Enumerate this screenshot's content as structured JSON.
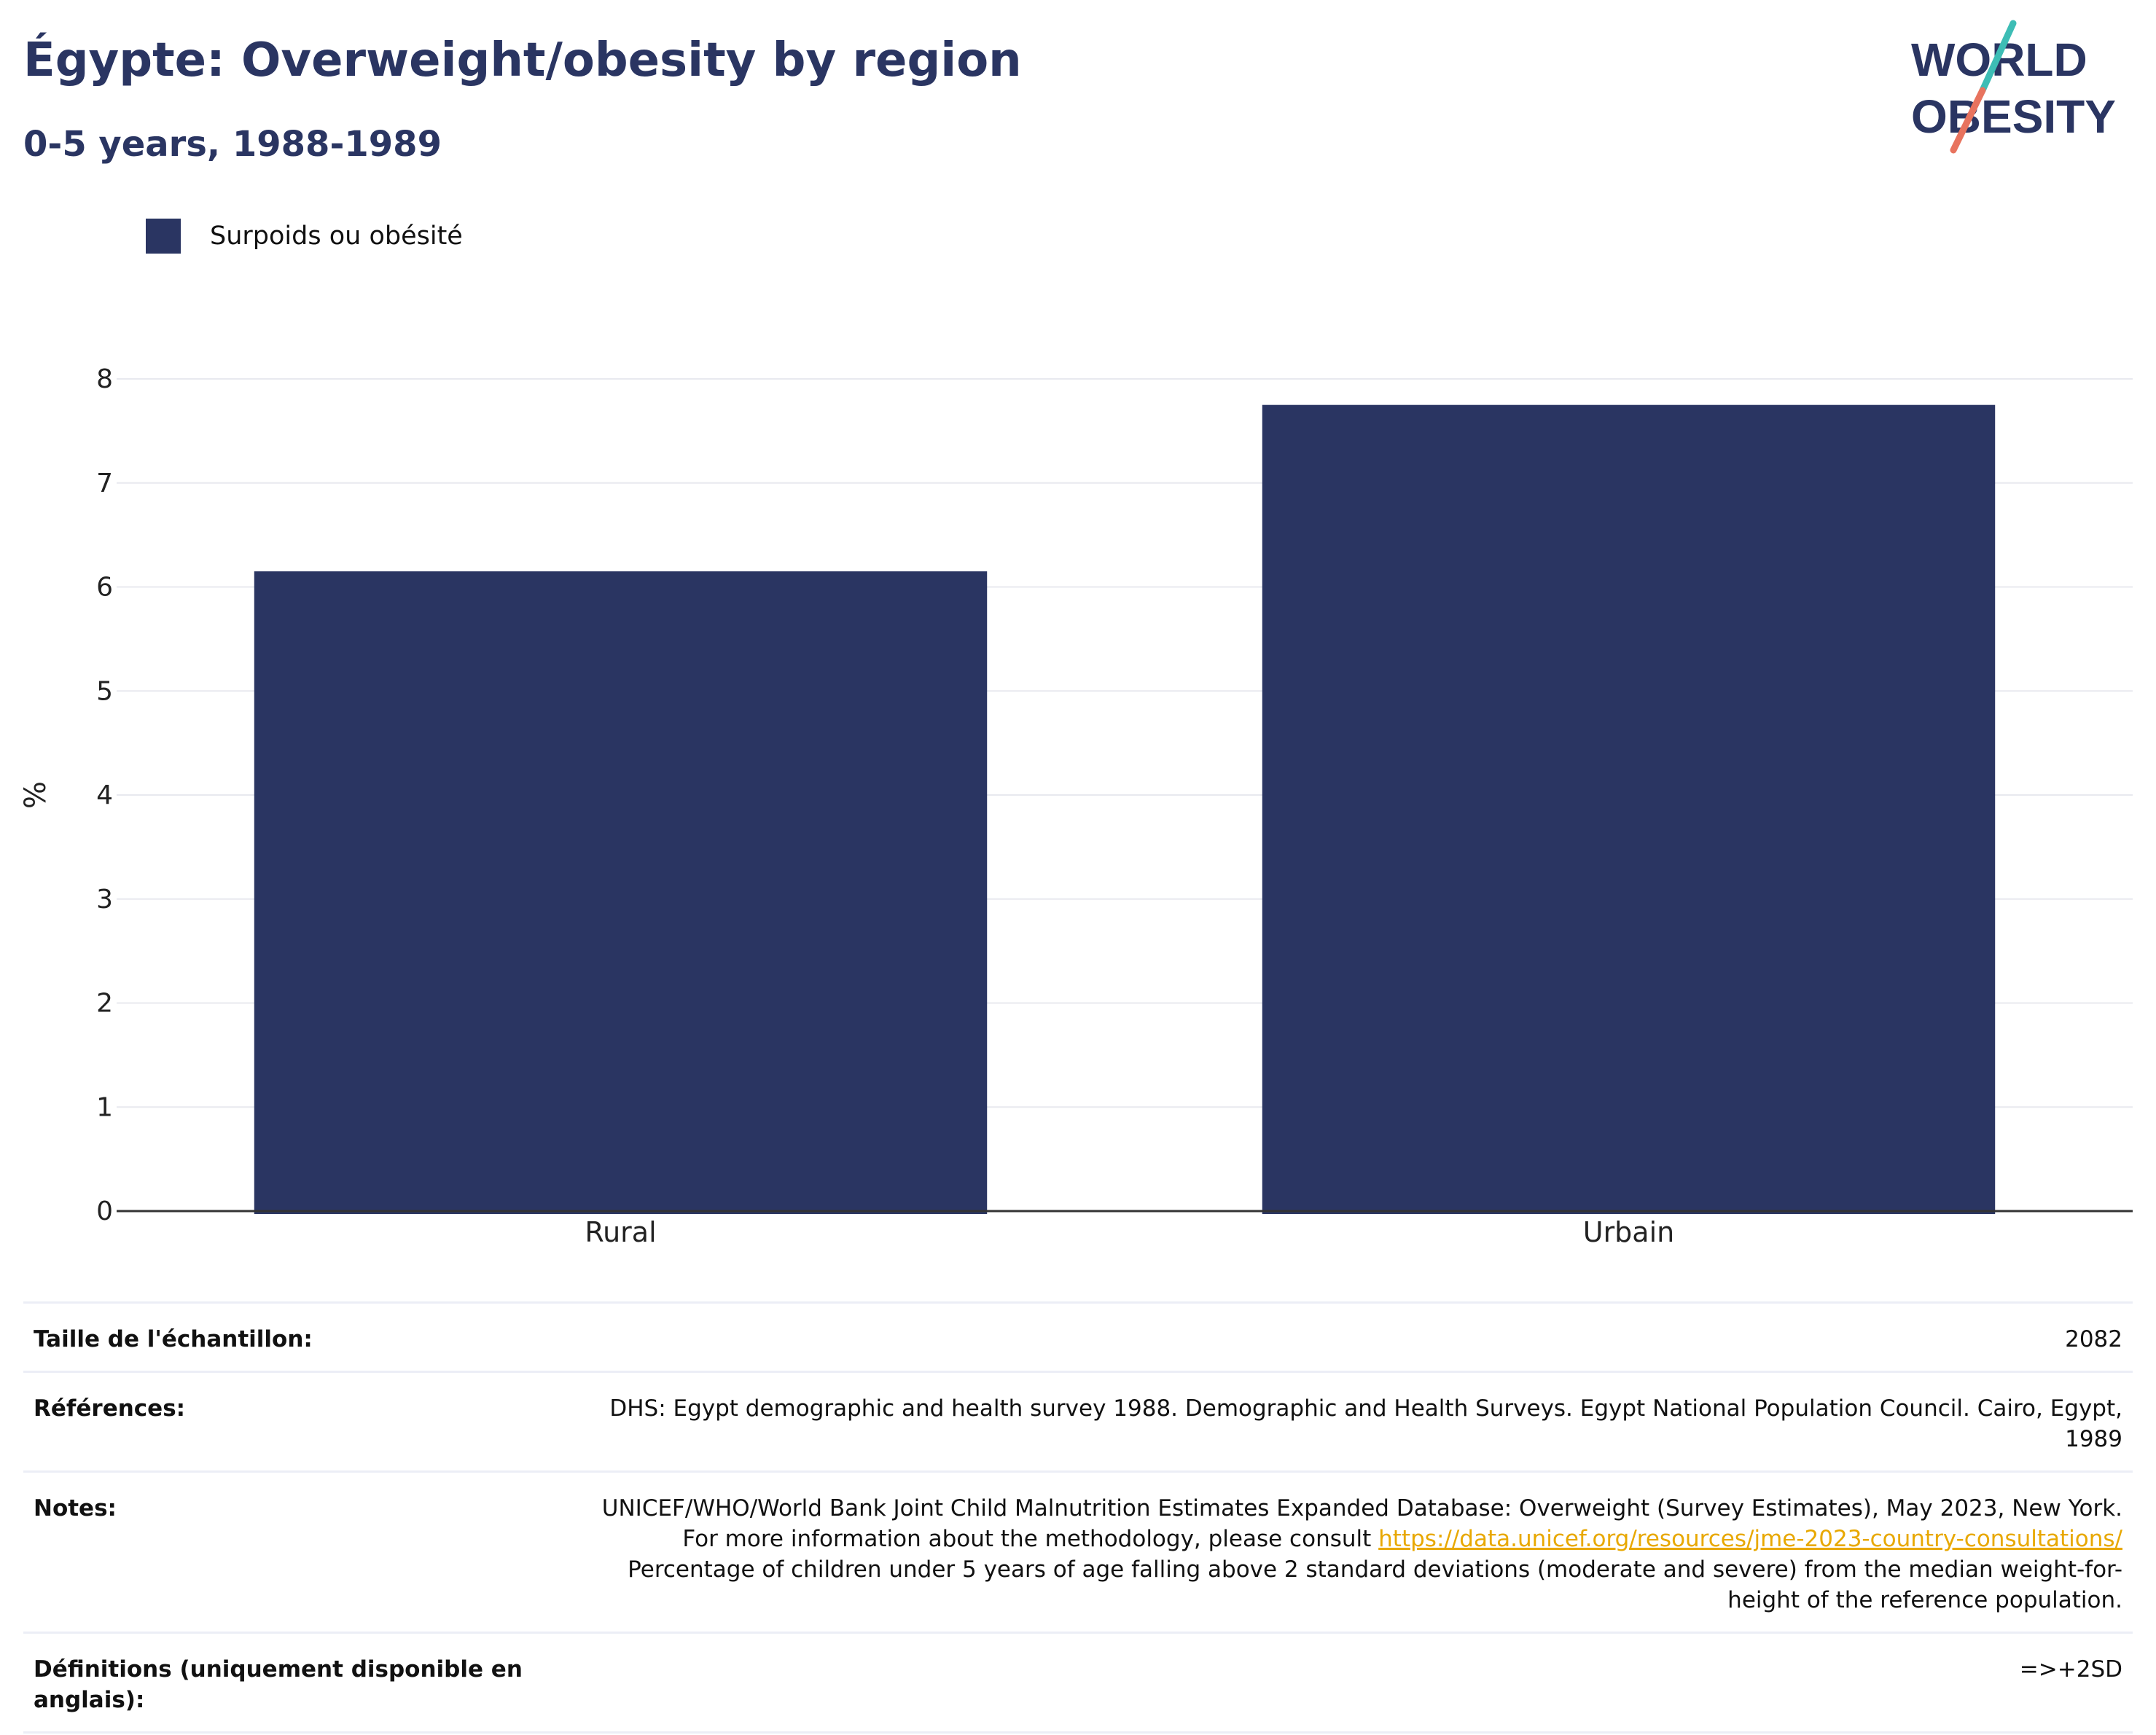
{
  "header": {
    "title": "Égypte: Overweight/obesity by region",
    "subtitle": "0-5 years, 1988-1989"
  },
  "logo": {
    "line1": "WORLD",
    "line2": "OBESITY",
    "colors": [
      "#2a3562",
      "#3dbdb5",
      "#e8735e"
    ]
  },
  "legend": {
    "label": "Surpoids ou obésité",
    "color": "#2a3562"
  },
  "chart_data": {
    "type": "bar",
    "categories": [
      "Rural",
      "Urbain"
    ],
    "series": [
      {
        "name": "Surpoids ou obésité",
        "values": [
          6.15,
          7.75
        ],
        "color": "#2a3562"
      }
    ],
    "ylabel": "%",
    "xlabel": "",
    "ylim": [
      0,
      8
    ],
    "yticks": [
      0,
      1,
      2,
      3,
      4,
      5,
      6,
      7,
      8
    ],
    "grid": true,
    "legend_position": "top-left"
  },
  "info": {
    "sample_label": "Taille de l'échantillon:",
    "sample_value": "2082",
    "references_label": "Références:",
    "references_value": "DHS: Egypt demographic and health survey 1988. Demographic and Health Surveys. Egypt National Population Council. Cairo, Egypt, 1989",
    "notes_label": "Notes:",
    "notes_text_1": "UNICEF/WHO/World Bank Joint Child Malnutrition Estimates Expanded Database: Overweight (Survey Estimates), May 2023, New York. For more information about the methodology, please consult",
    "notes_link": "https://data.unicef.org/resources/jme-2023-country-consultations/",
    "notes_text_2": "Percentage of children under 5 years of age falling above 2 standard deviations (moderate and severe) from the median weight-for-height of the reference population.",
    "definitions_label": "Définitions (uniquement disponible en anglais):",
    "definitions_value": "=>+2SD"
  }
}
